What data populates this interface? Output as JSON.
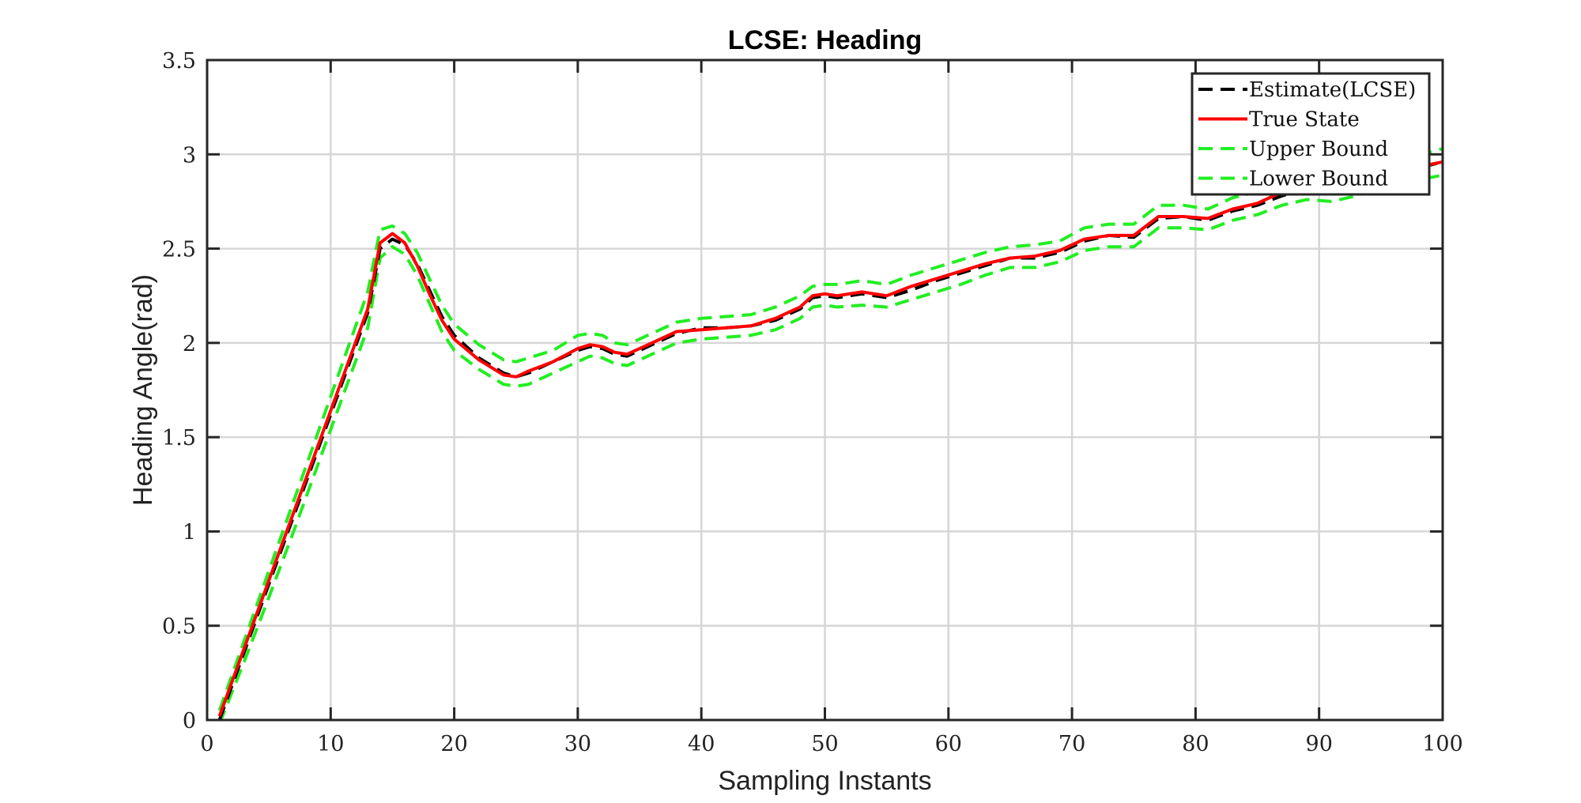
{
  "chart_data": {
    "type": "line",
    "title": "LCSE: Heading",
    "xlabel": "Sampling Instants",
    "ylabel": "Heading Angle(rad)",
    "xlim": [
      0,
      100
    ],
    "ylim": [
      0,
      3.5
    ],
    "xticks": [
      0,
      10,
      20,
      30,
      40,
      50,
      60,
      70,
      80,
      90,
      100
    ],
    "yticks": [
      0,
      0.5,
      1,
      1.5,
      2,
      2.5,
      3,
      3.5
    ],
    "xtick_labels": [
      "0",
      "10",
      "20",
      "30",
      "40",
      "50",
      "60",
      "70",
      "80",
      "90",
      "100"
    ],
    "ytick_labels": [
      "0",
      "0.5",
      "1",
      "1.5",
      "2",
      "2.5",
      "3",
      "3.5"
    ],
    "grid": true,
    "legend_position": "top-right",
    "x": [
      1,
      3,
      5,
      7,
      9,
      11,
      13,
      14,
      15,
      16,
      17,
      18,
      19,
      20,
      22,
      24,
      25,
      26,
      28,
      30,
      31,
      32,
      33,
      34,
      36,
      38,
      40,
      42,
      44,
      46,
      48,
      49,
      50,
      51,
      53,
      55,
      57,
      59,
      61,
      63,
      65,
      67,
      69,
      71,
      73,
      75,
      77,
      79,
      81,
      83,
      85,
      87,
      89,
      91,
      93,
      95,
      97,
      100
    ],
    "series": [
      {
        "name": "Estimate(LCSE)",
        "color": "#000000",
        "dash": "dashed",
        "values": [
          0.0,
          0.36,
          0.72,
          1.08,
          1.44,
          1.8,
          2.16,
          2.5,
          2.55,
          2.52,
          2.42,
          2.28,
          2.14,
          2.04,
          1.92,
          1.84,
          1.82,
          1.84,
          1.9,
          1.96,
          1.98,
          1.97,
          1.94,
          1.93,
          1.99,
          2.05,
          2.08,
          2.08,
          2.09,
          2.12,
          2.18,
          2.24,
          2.25,
          2.24,
          2.26,
          2.24,
          2.28,
          2.33,
          2.37,
          2.41,
          2.45,
          2.45,
          2.48,
          2.54,
          2.57,
          2.56,
          2.66,
          2.67,
          2.65,
          2.7,
          2.73,
          2.78,
          2.82,
          2.84,
          2.85,
          2.88,
          2.91,
          2.96
        ]
      },
      {
        "name": "True State",
        "color": "#ff0000",
        "dash": "solid",
        "values": [
          0.02,
          0.38,
          0.74,
          1.1,
          1.46,
          1.82,
          2.18,
          2.53,
          2.58,
          2.53,
          2.41,
          2.26,
          2.12,
          2.02,
          1.91,
          1.83,
          1.82,
          1.85,
          1.9,
          1.97,
          1.99,
          1.98,
          1.95,
          1.94,
          2.0,
          2.06,
          2.07,
          2.08,
          2.09,
          2.13,
          2.19,
          2.25,
          2.26,
          2.25,
          2.27,
          2.25,
          2.3,
          2.34,
          2.38,
          2.42,
          2.45,
          2.46,
          2.49,
          2.55,
          2.57,
          2.57,
          2.67,
          2.67,
          2.66,
          2.71,
          2.74,
          2.8,
          2.84,
          2.86,
          2.87,
          2.9,
          2.92,
          2.96
        ]
      },
      {
        "name": "Upper Bound",
        "color": "#22ee22",
        "dash": "dashed",
        "values": [
          0.05,
          0.42,
          0.79,
          1.16,
          1.53,
          1.9,
          2.27,
          2.6,
          2.62,
          2.58,
          2.48,
          2.34,
          2.2,
          2.1,
          1.99,
          1.91,
          1.9,
          1.92,
          1.96,
          2.04,
          2.05,
          2.04,
          2.0,
          1.99,
          2.05,
          2.11,
          2.13,
          2.14,
          2.15,
          2.19,
          2.25,
          2.3,
          2.31,
          2.31,
          2.33,
          2.31,
          2.36,
          2.4,
          2.44,
          2.48,
          2.51,
          2.52,
          2.54,
          2.61,
          2.63,
          2.63,
          2.73,
          2.73,
          2.71,
          2.77,
          2.8,
          2.86,
          2.9,
          2.92,
          2.93,
          2.96,
          2.98,
          3.03
        ]
      },
      {
        "name": "Lower Bound",
        "color": "#22ee22",
        "dash": "dashed",
        "values": [
          -0.02,
          0.31,
          0.65,
          1.0,
          1.36,
          1.72,
          2.08,
          2.45,
          2.51,
          2.47,
          2.36,
          2.21,
          2.06,
          1.96,
          1.86,
          1.78,
          1.77,
          1.78,
          1.84,
          1.9,
          1.93,
          1.92,
          1.89,
          1.88,
          1.94,
          2.0,
          2.02,
          2.03,
          2.04,
          2.07,
          2.13,
          2.19,
          2.2,
          2.19,
          2.2,
          2.19,
          2.23,
          2.27,
          2.31,
          2.36,
          2.4,
          2.4,
          2.43,
          2.49,
          2.51,
          2.51,
          2.61,
          2.61,
          2.6,
          2.65,
          2.68,
          2.73,
          2.76,
          2.75,
          2.78,
          2.82,
          2.85,
          2.89
        ]
      }
    ]
  }
}
